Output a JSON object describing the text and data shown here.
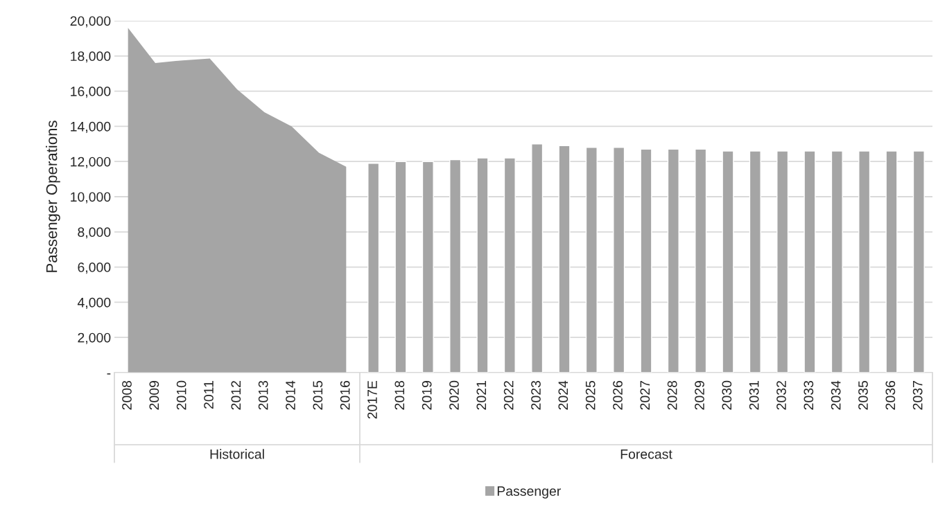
{
  "chart_data": {
    "type": "bar",
    "ylabel": "Passenger Operations",
    "categories": [
      "2008",
      "2009",
      "2010",
      "2011",
      "2012",
      "2013",
      "2014",
      "2015",
      "2016",
      "2017E",
      "2018",
      "2019",
      "2020",
      "2021",
      "2022",
      "2023",
      "2024",
      "2025",
      "2026",
      "2027",
      "2028",
      "2029",
      "2030",
      "2031",
      "2032",
      "2033",
      "2034",
      "2035",
      "2036",
      "2037"
    ],
    "series": [
      {
        "type": "area",
        "color": "#a5a5a5",
        "values": [
          19600,
          17600,
          17750,
          17850,
          16100,
          14800,
          14000,
          12500,
          11700,
          null,
          null,
          null,
          null,
          null,
          null,
          null,
          null,
          null,
          null,
          null,
          null,
          null,
          null,
          null,
          null,
          null,
          null,
          null,
          null,
          null
        ]
      },
      {
        "name": "Passenger",
        "color": "#a5a5a5",
        "values": [
          null,
          null,
          null,
          null,
          null,
          null,
          null,
          null,
          null,
          11900,
          12000,
          12000,
          12100,
          12200,
          12200,
          13000,
          12900,
          12800,
          12800,
          12700,
          12700,
          12700,
          12600,
          12600,
          12600,
          12600,
          12600,
          12600,
          12600,
          12600
        ]
      }
    ],
    "ylim": [
      0,
      20000
    ],
    "yticks": [
      {
        "value": 0,
        "label": "-"
      },
      {
        "value": 2000,
        "label": "2,000"
      },
      {
        "value": 4000,
        "label": "4,000"
      },
      {
        "value": 6000,
        "label": "6,000"
      },
      {
        "value": 8000,
        "label": "8,000"
      },
      {
        "value": 10000,
        "label": "10,000"
      },
      {
        "value": 12000,
        "label": "12,000"
      },
      {
        "value": 14000,
        "label": "14,000"
      },
      {
        "value": 16000,
        "label": "16,000"
      },
      {
        "value": 18000,
        "label": "18,000"
      },
      {
        "value": 20000,
        "label": "20,000"
      }
    ],
    "annotations": [
      "Historical",
      "Forecast"
    ],
    "grid": "y",
    "legend": "bottom"
  }
}
